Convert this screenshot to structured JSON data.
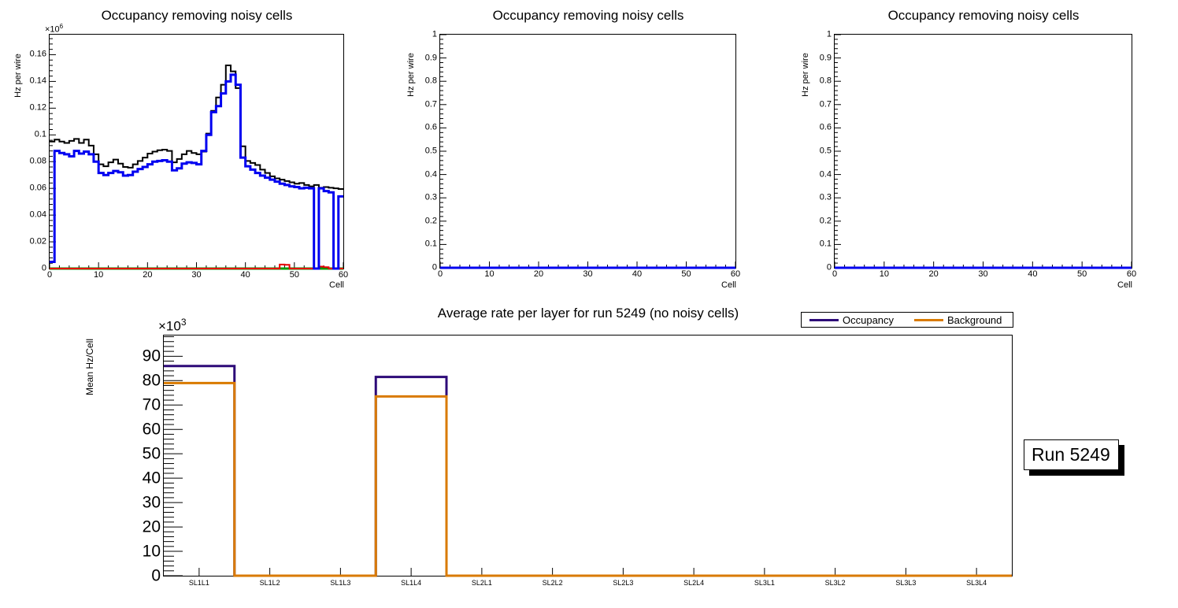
{
  "canvas": {
    "background": "#ffffff"
  },
  "chart_data": [
    {
      "id": "occupancy-cells-sl1",
      "type": "step-histogram",
      "title": "Occupancy removing noisy cells",
      "ylabel": "Hz per wire",
      "xlabel": "Cell",
      "exponent": {
        "base": "×10",
        "power": "6"
      },
      "xlim": [
        0,
        60
      ],
      "ylim": [
        0,
        0.175
      ],
      "grid": false,
      "yticks": {
        "values": [
          0,
          0.02,
          0.04,
          0.06,
          0.08,
          0.1,
          0.12,
          0.14,
          0.16
        ],
        "labels": [
          "0",
          "0.02",
          "0.04",
          "0.06",
          "0.08",
          "0.1",
          "0.12",
          "0.14",
          "0.16"
        ]
      },
      "yminor_step": 0.004,
      "xticks": {
        "values": [
          0,
          10,
          20,
          30,
          40,
          50,
          60
        ],
        "labels": [
          "0",
          "10",
          "20",
          "30",
          "40",
          "50",
          "60"
        ]
      },
      "xminor_step": 2,
      "series": [
        {
          "name": "occupancy-total-black",
          "color": "#000000",
          "width": 2,
          "values": [
            0.095,
            0.0965,
            0.095,
            0.094,
            0.0955,
            0.097,
            0.094,
            0.0965,
            0.092,
            0.0855,
            0.078,
            0.0765,
            0.0795,
            0.0815,
            0.0785,
            0.076,
            0.0755,
            0.078,
            0.0805,
            0.083,
            0.086,
            0.0875,
            0.0885,
            0.089,
            0.088,
            0.0795,
            0.082,
            0.0855,
            0.088,
            0.0865,
            0.0855,
            0.0875,
            0.101,
            0.118,
            0.128,
            0.1375,
            0.152,
            0.1475,
            0.135,
            0.0915,
            0.0805,
            0.079,
            0.0775,
            0.074,
            0.0715,
            0.069,
            0.0675,
            0.0665,
            0.0655,
            0.0645,
            0.0635,
            0.064,
            0.0625,
            0.0615,
            0.0625,
            0.0605,
            0.061,
            0.0605,
            0.06,
            0.0595
          ]
        },
        {
          "name": "baseline-zero-green",
          "color": "#009c00",
          "width": 3,
          "values": [
            0
          ]
        },
        {
          "name": "noisy-cells-red",
          "color": "#e60000",
          "width": 2,
          "values": [
            0,
            0,
            0,
            0,
            0,
            0,
            0,
            0,
            0,
            0,
            0,
            0,
            0,
            0,
            0,
            0,
            0,
            0,
            0,
            0,
            0,
            0,
            0,
            0,
            0,
            0,
            0,
            0,
            0,
            0,
            0,
            0,
            0,
            0,
            0,
            0,
            0,
            0,
            0,
            0,
            0,
            0,
            0,
            0,
            0,
            0,
            0,
            0.003,
            0.0028,
            0,
            0,
            0,
            0,
            0,
            0,
            0.0015,
            0.001,
            0,
            0,
            0
          ]
        },
        {
          "name": "occupancy-clean-blue",
          "color": "#0000f0",
          "width": 3,
          "values": [
            0.005,
            0.088,
            0.0865,
            0.0855,
            0.084,
            0.088,
            0.086,
            0.0875,
            0.0855,
            0.08,
            0.0715,
            0.07,
            0.0715,
            0.073,
            0.072,
            0.0695,
            0.07,
            0.0725,
            0.0745,
            0.076,
            0.078,
            0.08,
            0.0805,
            0.081,
            0.08,
            0.0735,
            0.075,
            0.0785,
            0.0795,
            0.079,
            0.078,
            0.088,
            0.1,
            0.117,
            0.1215,
            0.131,
            0.14,
            0.145,
            0.1375,
            0.083,
            0.0765,
            0.074,
            0.0715,
            0.0695,
            0.068,
            0.0665,
            0.065,
            0.0635,
            0.0625,
            0.0615,
            0.061,
            0.06,
            0.0605,
            0.06,
            0,
            0.06,
            0.058,
            0.057,
            0,
            0.054
          ]
        }
      ]
    },
    {
      "id": "occupancy-cells-sl2",
      "type": "step-histogram",
      "title": "Occupancy removing noisy cells",
      "ylabel": "Hz per wire",
      "xlabel": "Cell",
      "xlim": [
        0,
        60
      ],
      "ylim": [
        0,
        1
      ],
      "grid": false,
      "yticks": {
        "values": [
          0,
          0.1,
          0.2,
          0.3,
          0.4,
          0.5,
          0.6,
          0.7,
          0.8,
          0.9,
          1
        ],
        "labels": [
          "0",
          "0.1",
          "0.2",
          "0.3",
          "0.4",
          "0.5",
          "0.6",
          "0.7",
          "0.8",
          "0.9",
          "1"
        ]
      },
      "yminor_step": 0.02,
      "xticks": {
        "values": [
          0,
          10,
          20,
          30,
          40,
          50,
          60
        ],
        "labels": [
          "0",
          "10",
          "20",
          "30",
          "40",
          "50",
          "60"
        ]
      },
      "xminor_step": 2,
      "series": [
        {
          "name": "occupancy-empty-blue",
          "color": "#0000f0",
          "width": 3,
          "values": [
            0
          ]
        }
      ]
    },
    {
      "id": "occupancy-cells-sl3",
      "type": "step-histogram",
      "title": "Occupancy removing noisy cells",
      "ylabel": "Hz per wire",
      "xlabel": "Cell",
      "xlim": [
        0,
        60
      ],
      "ylim": [
        0,
        1
      ],
      "grid": false,
      "yticks": {
        "values": [
          0,
          0.1,
          0.2,
          0.3,
          0.4,
          0.5,
          0.6,
          0.7,
          0.8,
          0.9,
          1
        ],
        "labels": [
          "0",
          "0.1",
          "0.2",
          "0.3",
          "0.4",
          "0.5",
          "0.6",
          "0.7",
          "0.8",
          "0.9",
          "1"
        ]
      },
      "yminor_step": 0.02,
      "xticks": {
        "values": [
          0,
          10,
          20,
          30,
          40,
          50,
          60
        ],
        "labels": [
          "0",
          "10",
          "20",
          "30",
          "40",
          "50",
          "60"
        ]
      },
      "xminor_step": 2,
      "series": [
        {
          "name": "occupancy-empty-blue",
          "color": "#0000f0",
          "width": 3,
          "values": [
            0
          ]
        }
      ]
    },
    {
      "id": "average-rate-per-layer",
      "type": "step-histogram",
      "title": "Average rate per layer for run 5249 (no noisy cells)",
      "ylabel": "Mean Hz/Cell",
      "xlabel": "",
      "exponent": {
        "base": "×10",
        "power": "3"
      },
      "xlim": [
        0,
        12
      ],
      "ylim": [
        0,
        98.5
      ],
      "grid": false,
      "yticks": {
        "values": [
          0,
          10,
          20,
          30,
          40,
          50,
          60,
          70,
          80,
          90
        ],
        "labels": [
          "0",
          "10",
          "20",
          "30",
          "40",
          "50",
          "60",
          "70",
          "80",
          "90"
        ]
      },
      "yminor_step": 2,
      "categories": [
        "SL1L1",
        "SL1L2",
        "SL1L3",
        "SL1L4",
        "SL2L1",
        "SL2L2",
        "SL2L3",
        "SL2L4",
        "SL3L1",
        "SL3L2",
        "SL3L3",
        "SL3L4"
      ],
      "series": [
        {
          "name": "occupancy",
          "color": "#2d0a78",
          "width": 3,
          "values": [
            86,
            0,
            0,
            81.5,
            0,
            0,
            0,
            0,
            0,
            0,
            0,
            0
          ]
        },
        {
          "name": "background",
          "color": "#d97a00",
          "width": 3,
          "values": [
            79,
            0,
            0,
            73.5,
            0,
            0,
            0,
            0,
            0,
            0,
            0,
            0
          ]
        }
      ]
    }
  ],
  "legend": {
    "position": "top-right",
    "items": [
      {
        "label": "Occupancy",
        "color": "#2d0a78"
      },
      {
        "label": "Background",
        "color": "#d97a00"
      }
    ]
  },
  "run_box": {
    "label": "Run 5249"
  }
}
